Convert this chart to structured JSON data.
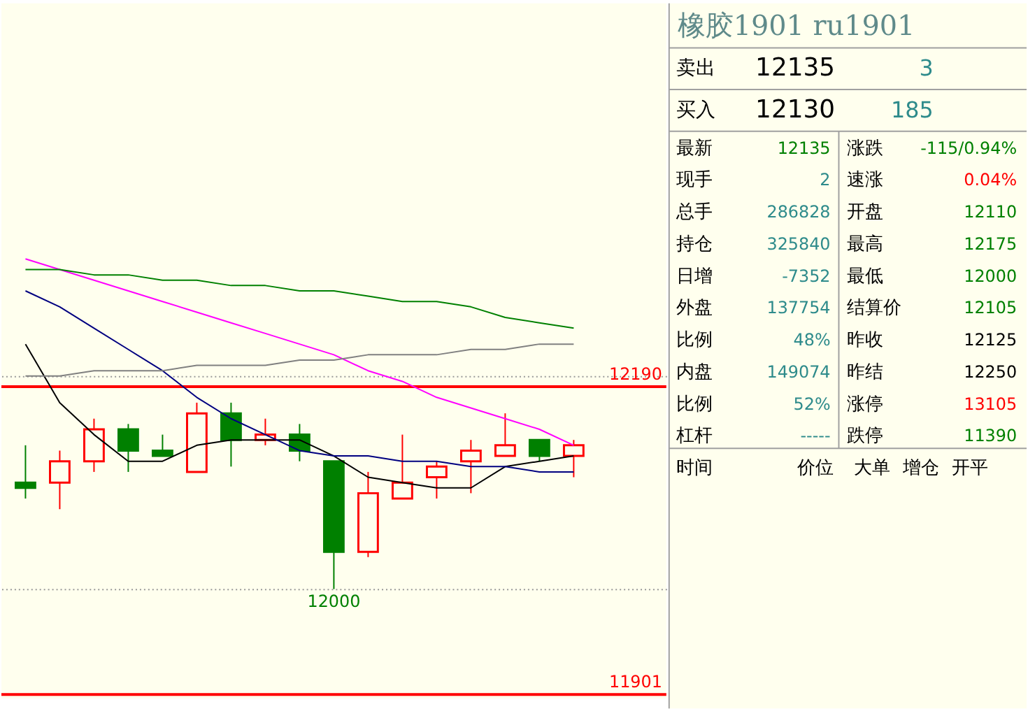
{
  "chart_data": [
    {
      "type": "candlestick",
      "categories": [
        null,
        null,
        null,
        null,
        null,
        null,
        null,
        null,
        null,
        null,
        null,
        null,
        null,
        null,
        null,
        null,
        null
      ],
      "ohlc": [
        [
          12100,
          12135,
          12085,
          12095
        ],
        [
          12100,
          12130,
          12075,
          12120
        ],
        [
          12120,
          12160,
          12110,
          12150
        ],
        [
          12150,
          12155,
          12110,
          12130
        ],
        [
          12130,
          12145,
          12125,
          12125
        ],
        [
          12110,
          12175,
          12110,
          12165
        ],
        [
          12165,
          12175,
          12115,
          12140
        ],
        [
          12140,
          12160,
          12135,
          12145
        ],
        [
          12145,
          12155,
          12120,
          12130
        ],
        [
          12120,
          12120,
          12000,
          12035
        ],
        [
          12035,
          12110,
          12030,
          12090
        ],
        [
          12085,
          12145,
          12085,
          12100
        ],
        [
          12105,
          12120,
          12085,
          12115
        ],
        [
          12120,
          12140,
          12090,
          12130
        ],
        [
          12125,
          12165,
          12125,
          12135
        ],
        [
          12140,
          12140,
          12120,
          12125
        ],
        [
          12125,
          12140,
          12105,
          12135
        ]
      ],
      "colors": [
        "#008000",
        "#ff0000",
        "#ff0000",
        "#008000",
        "#008000",
        "#ff0000",
        "#008000",
        "#ff0000",
        "#008000",
        "#008000",
        "#ff0000",
        "#ff0000",
        "#ff0000",
        "#ff0000",
        "#ff0000",
        "#008000",
        "#ff0000"
      ],
      "series": [
        {
          "type": "line",
          "color": "#000000",
          "values": [
            12230,
            12175,
            12145,
            12120,
            12120,
            12135,
            12140,
            12140,
            12140,
            12125,
            12105,
            12100,
            12095,
            12095,
            12115,
            12120,
            12125
          ]
        },
        {
          "type": "line",
          "color": "#000080",
          "values": [
            12280,
            12265,
            12245,
            12225,
            12205,
            12180,
            12160,
            12145,
            12130,
            12125,
            12125,
            12120,
            12120,
            12115,
            12115,
            12110,
            12110
          ]
        },
        {
          "type": "line",
          "color": "#ff00ff",
          "values": [
            12310,
            12300,
            12290,
            12280,
            12270,
            12260,
            12250,
            12240,
            12230,
            12220,
            12205,
            12195,
            12180,
            12170,
            12160,
            12150,
            12135
          ]
        },
        {
          "type": "line",
          "color": "#808080",
          "values": [
            12200,
            12200,
            12205,
            12205,
            12205,
            12210,
            12210,
            12210,
            12215,
            12215,
            12220,
            12220,
            12220,
            12225,
            12225,
            12230,
            12230
          ]
        },
        {
          "type": "line",
          "color": "#008000",
          "values": [
            12300,
            12300,
            12295,
            12295,
            12290,
            12290,
            12285,
            12285,
            12280,
            12280,
            12275,
            12270,
            12270,
            12265,
            12255,
            12250,
            12245
          ]
        }
      ],
      "ylim": [
        11897,
        12550
      ],
      "yticks": [
        {
          "value": 12000,
          "label": null
        },
        {
          "value": 12200,
          "label": null
        }
      ],
      "grid": "y",
      "tick_labels": false,
      "ref_lines": [
        {
          "axis": "y",
          "value": 12190,
          "label": "12190",
          "color": "#ff0000"
        },
        {
          "axis": "y",
          "value": 11901,
          "label": "11901",
          "color": "#ff0000"
        }
      ],
      "annotations": [
        {
          "text": "12000",
          "y": 12000
        }
      ]
    },
    {
      "type": "other",
      "title": "橡胶1901 ru1901",
      "annotations": [
        "卖出",
        "12135",
        "3",
        "买入",
        "12130",
        "185",
        "最新",
        "12135",
        "涨跌",
        "-115/0.94%",
        "现手",
        "2",
        "速涨",
        "0.04%",
        "总手",
        "286828",
        "开盘",
        "12110",
        "持仓",
        "325840",
        "最高",
        "12175",
        "日增",
        "-7352",
        "最低",
        "12000",
        "外盘",
        "137754",
        "结算价",
        "12105",
        "比例",
        "48%",
        "昨收",
        "12125",
        "内盘",
        "149074",
        "昨结",
        "12250",
        "比例",
        "52%",
        "涨停",
        "13105",
        "杠杆",
        "-----",
        "跌停",
        "11390",
        "时间",
        "价位",
        "大单",
        "增仓",
        "开平"
      ],
      "colors": [
        "#000000",
        "#000000",
        "#2e8b8b",
        "#000000",
        "#000000",
        "#2e8b8b",
        "#000000",
        "#008000",
        "#000000",
        "#008000",
        "#000000",
        "#2e8b8b",
        "#000000",
        "#ff0000",
        "#000000",
        "#2e8b8b",
        "#000000",
        "#008000",
        "#000000",
        "#2e8b8b",
        "#000000",
        "#008000",
        "#000000",
        "#2e8b8b",
        "#000000",
        "#008000",
        "#000000",
        "#2e8b8b",
        "#000000",
        "#008000",
        "#000000",
        "#2e8b8b",
        "#000000",
        "#000000",
        "#000000",
        "#2e8b8b",
        "#000000",
        "#000000",
        "#000000",
        "#2e8b8b",
        "#000000",
        "#ff0000",
        "#000000",
        "#2e8b8b",
        "#000000",
        "#008000",
        "#000000",
        "#000000",
        "#000000",
        "#000000",
        "#000000"
      ]
    }
  ]
}
